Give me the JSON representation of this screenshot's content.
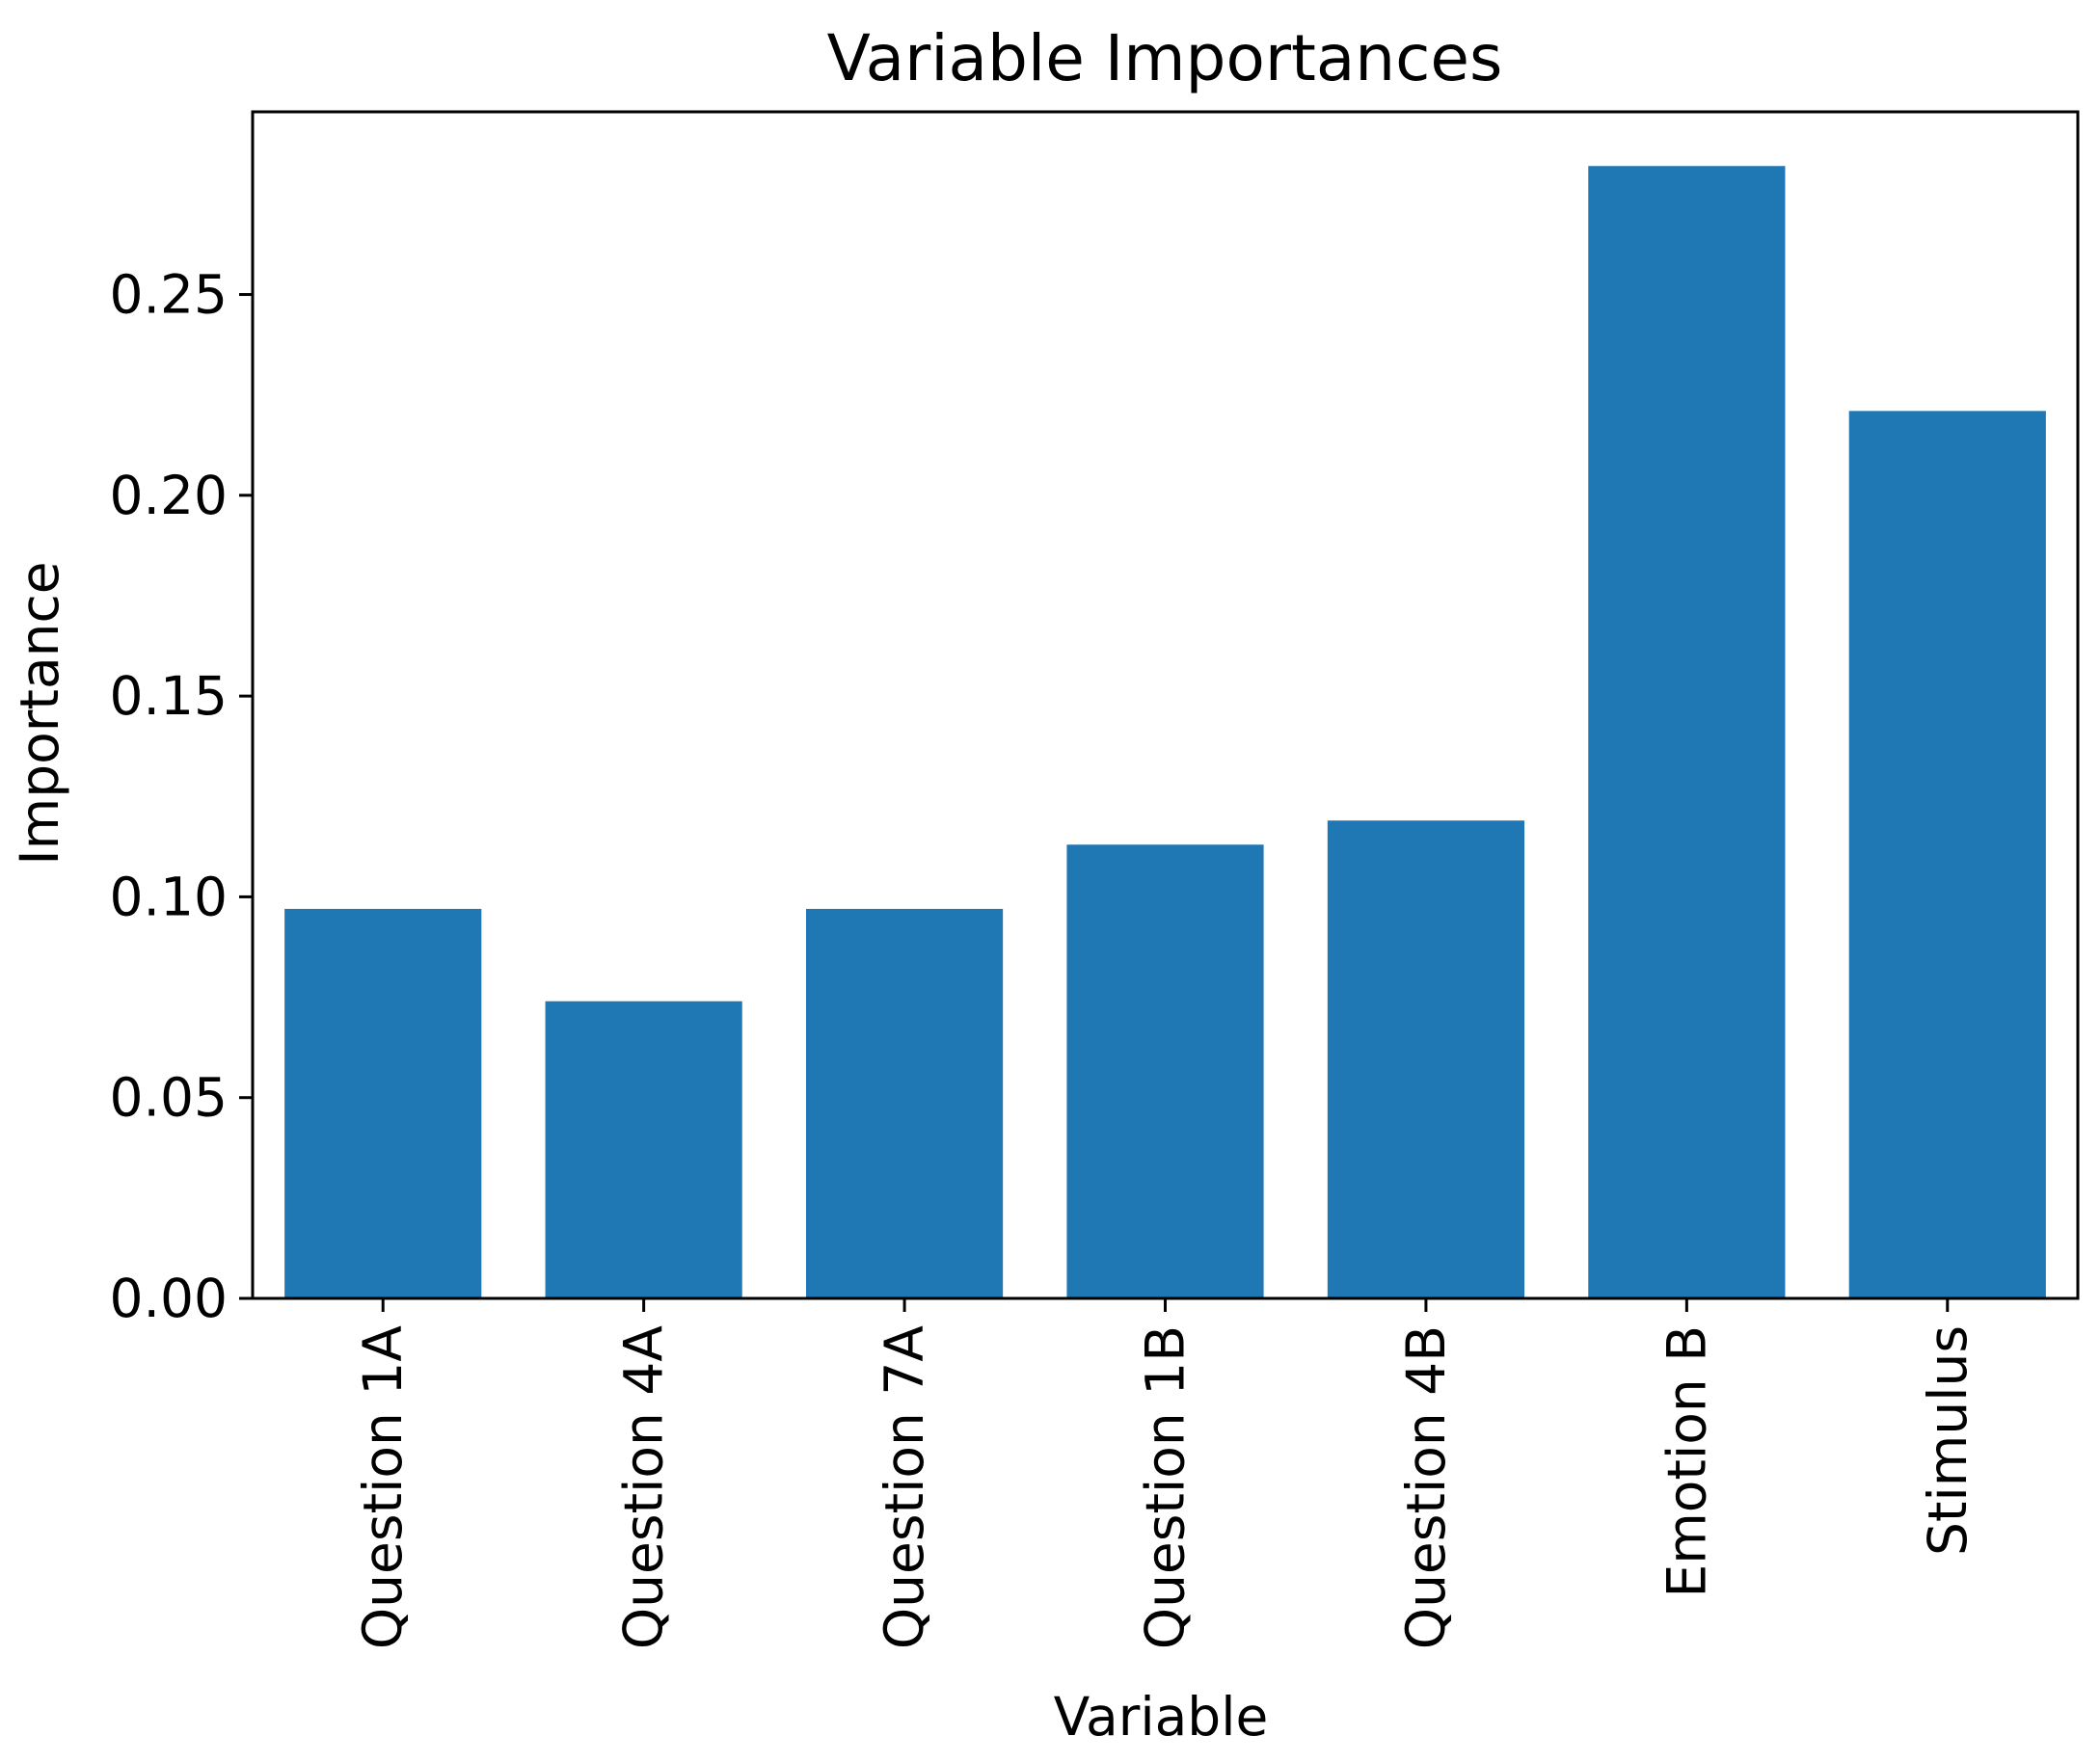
{
  "chart_data": {
    "type": "bar",
    "title": "Variable Importances",
    "xlabel": "Variable",
    "ylabel": "Importance",
    "categories": [
      "Question 1A",
      "Question 4A",
      "Question 7A",
      "Question 1B",
      "Question 4B",
      "Emotion B",
      "Stimulus"
    ],
    "values": [
      0.097,
      0.074,
      0.097,
      0.113,
      0.119,
      0.282,
      0.221
    ],
    "yticks": [
      "0.00",
      "0.05",
      "0.10",
      "0.15",
      "0.20",
      "0.25"
    ],
    "ylim": [
      0,
      0.2955
    ],
    "grid": false,
    "bar_color": "#1f77b4"
  }
}
